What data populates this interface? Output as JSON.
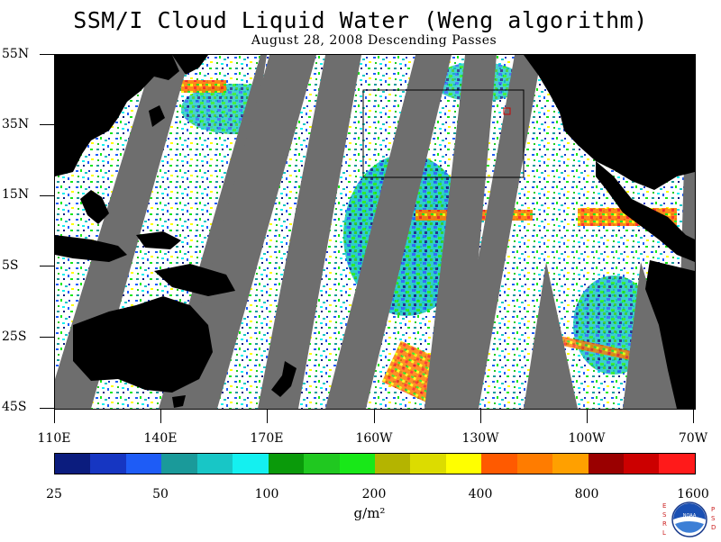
{
  "title": "SSM/I Cloud Liquid Water (Weng algorithm)",
  "subtitle": "August 28, 2008  Descending Passes",
  "lat_labels": [
    "55N",
    "35N",
    "15N",
    "5S",
    "25S",
    "45S"
  ],
  "lon_labels": [
    "110E",
    "140E",
    "170E",
    "160W",
    "130W",
    "100W",
    "70W"
  ],
  "colorbar": {
    "colors": [
      "#0b1c7e",
      "#1636c2",
      "#1e5cf6",
      "#1a9a9a",
      "#18c6c6",
      "#14f0f0",
      "#0a9a0a",
      "#20c820",
      "#18e818",
      "#b4b400",
      "#dcdc00",
      "#ffff00",
      "#ff5a00",
      "#ff7c00",
      "#ffa000",
      "#9a0000",
      "#cc0000",
      "#ff1a1a"
    ],
    "tick_labels": [
      "25",
      "50",
      "100",
      "200",
      "400",
      "800",
      "1600"
    ],
    "unit": "g/m²"
  },
  "logo": {
    "left_text": "ESRL",
    "right_text": "PSD",
    "center_text": "NOAA"
  },
  "colors": {
    "land": "#000000",
    "no_data": "#6e6e6e",
    "box": "#000000",
    "background": "#ffffff"
  }
}
